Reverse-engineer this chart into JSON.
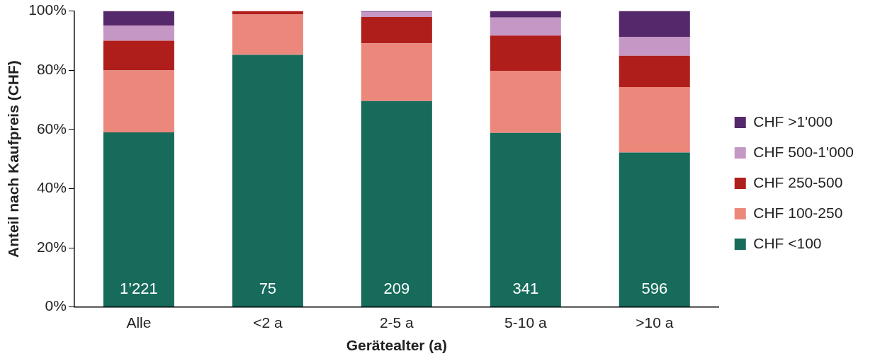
{
  "chart_data": {
    "type": "bar",
    "stacked": true,
    "xlabel": "Gerätealter (a)",
    "ylabel": "Anteil nach Kaufpreis (CHF)",
    "categories": [
      "Alle",
      "<2 a",
      "2-5 a",
      "5-10 a",
      ">10 a"
    ],
    "series": [
      {
        "name": "CHF <100",
        "color": "#166b5a",
        "values": [
          59.0,
          85.2,
          69.6,
          58.8,
          52.2
        ]
      },
      {
        "name": "CHF 100-250",
        "color": "#ec877c",
        "values": [
          20.9,
          13.6,
          19.5,
          21.0,
          22.1
        ]
      },
      {
        "name": "CHF 250-500",
        "color": "#b01e1b",
        "values": [
          10.1,
          1.2,
          8.9,
          11.9,
          10.6
        ]
      },
      {
        "name": "CHF 500-1'000",
        "color": "#c497c5",
        "values": [
          5.1,
          0,
          1.7,
          6.1,
          6.4
        ]
      },
      {
        "name": "CHF >1'000",
        "color": "#55286b",
        "values": [
          4.9,
          0,
          0.3,
          2.2,
          8.7
        ]
      }
    ],
    "ylim": [
      0,
      100
    ],
    "yticks": [
      {
        "value": 0,
        "label": "0%"
      },
      {
        "value": 20,
        "label": "20%"
      },
      {
        "value": 40,
        "label": "40%"
      },
      {
        "value": 60,
        "label": "60%"
      },
      {
        "value": 80,
        "label": "80%"
      },
      {
        "value": 100,
        "label": "100%"
      }
    ],
    "grid": false,
    "legend": "right",
    "annotations": [
      "1’221",
      "75",
      "209",
      "341",
      "596"
    ]
  }
}
